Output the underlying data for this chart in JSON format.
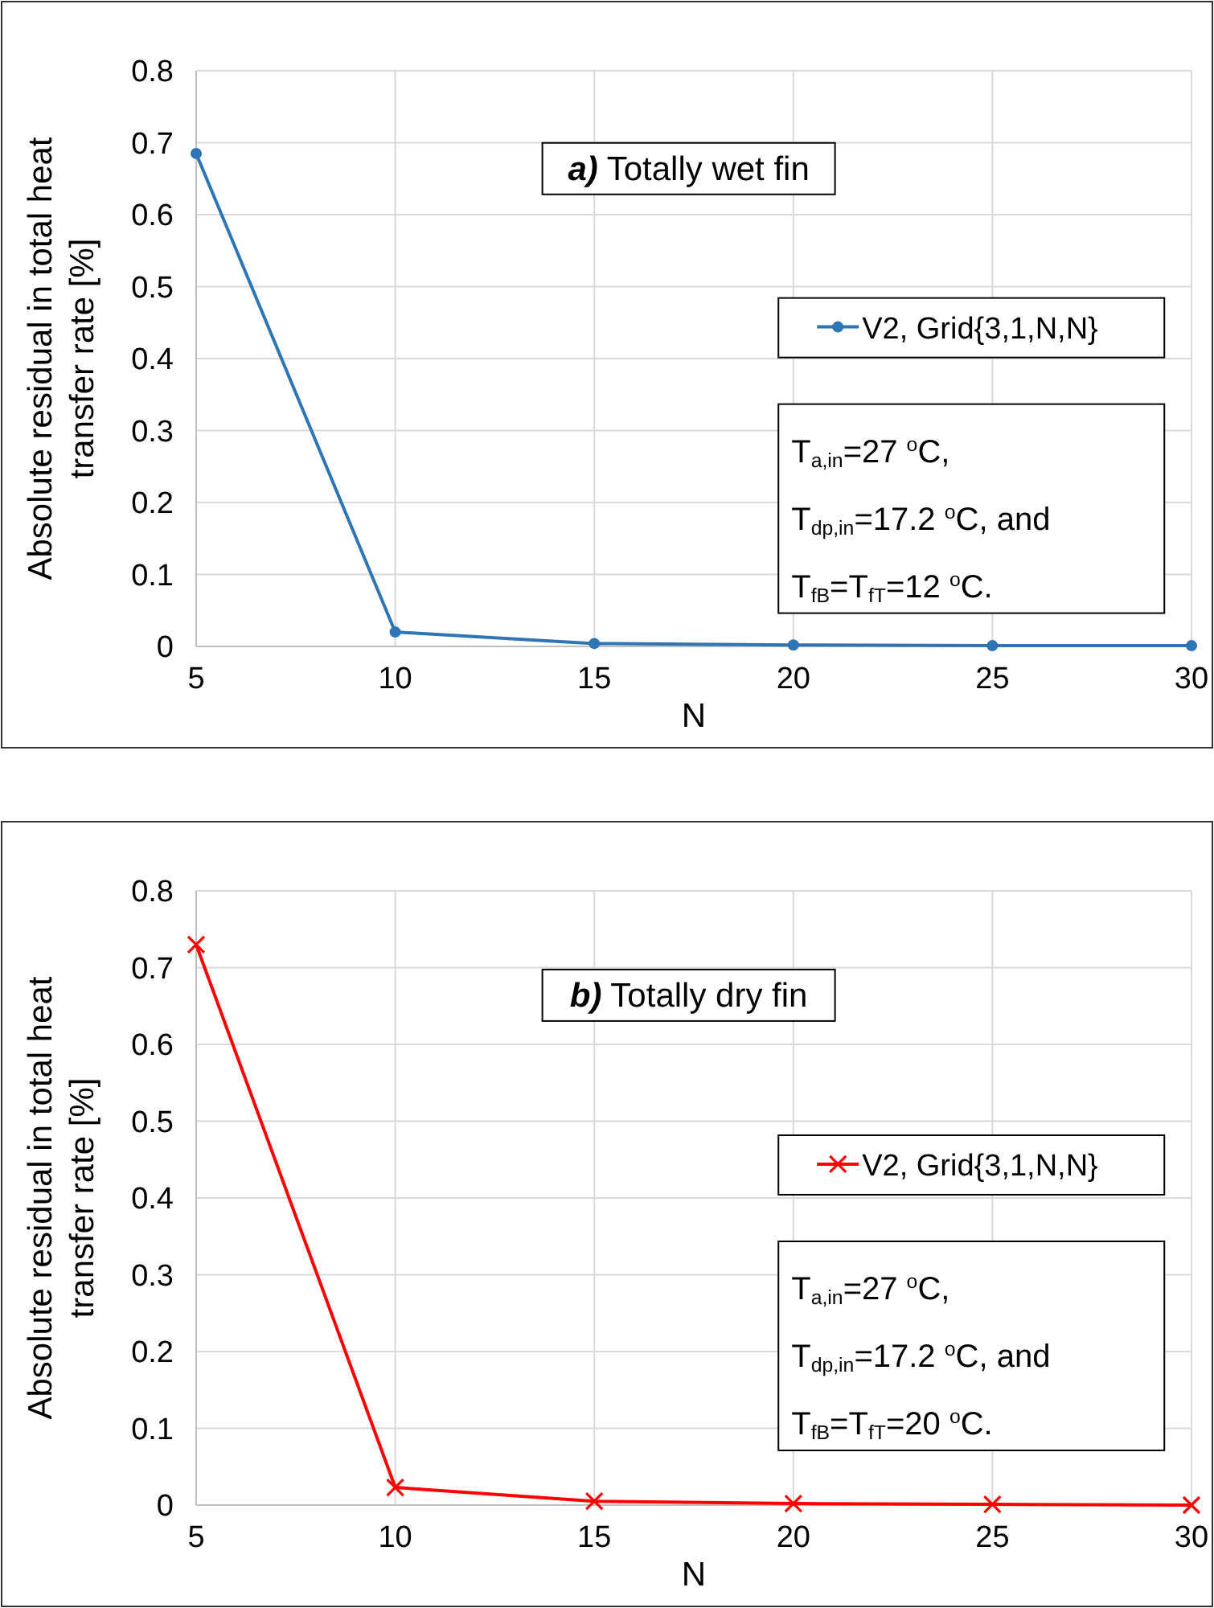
{
  "chart_data": [
    {
      "type": "line",
      "title": "a) Totally wet fin",
      "xlabel": "N",
      "ylabel": "Absolute residual in total heat transfer rate [%]",
      "x": [
        5,
        10,
        15,
        20,
        25,
        30
      ],
      "series": [
        {
          "name": "V2, Grid{3,1,N,N}",
          "color": "#2e75b6",
          "values": [
            0.685,
            0.02,
            0.004,
            0.002,
            0.001,
            0.001
          ]
        }
      ],
      "xlim": [
        5,
        30
      ],
      "xticks": [
        5,
        10,
        15,
        20,
        25,
        30
      ],
      "ylim": [
        0,
        0.8
      ],
      "yticks": [
        0,
        0.1,
        0.2,
        0.3,
        0.4,
        0.5,
        0.6,
        0.7,
        0.8
      ],
      "grid": true,
      "legend": "right",
      "marker": "circle",
      "annotations": [
        "T$_{a,in}$=27 $^{o}$C,",
        "T$_{dp,in}$=17.2 $^{o}$C, and",
        "T$_{fB}$=T$_{fT}$=12 $^{o}$C."
      ]
    },
    {
      "type": "line",
      "title": "b) Totally dry fin",
      "xlabel": "N",
      "ylabel": "Absolute residual in total heat transfer rate [%]",
      "x": [
        5,
        10,
        15,
        20,
        25,
        30
      ],
      "series": [
        {
          "name": "V2, Grid{3,1,N,N}",
          "color": "#ff0000",
          "values": [
            0.73,
            0.023,
            0.005,
            0.002,
            0.001,
            0
          ]
        }
      ],
      "xlim": [
        5,
        30
      ],
      "xticks": [
        5,
        10,
        15,
        20,
        25,
        30
      ],
      "ylim": [
        0,
        0.8
      ],
      "yticks": [
        0,
        0.1,
        0.2,
        0.3,
        0.4,
        0.5,
        0.6,
        0.7,
        0.8
      ],
      "grid": true,
      "legend": "right",
      "marker": "cross",
      "annotations": [
        "T$_{a,in}$=27 $^{o}$C,",
        "T$_{dp,in}$=17.2 $^{o}$C, and",
        "T$_{fB}$=T$_{fT}$=20 $^{o}$C."
      ]
    }
  ]
}
